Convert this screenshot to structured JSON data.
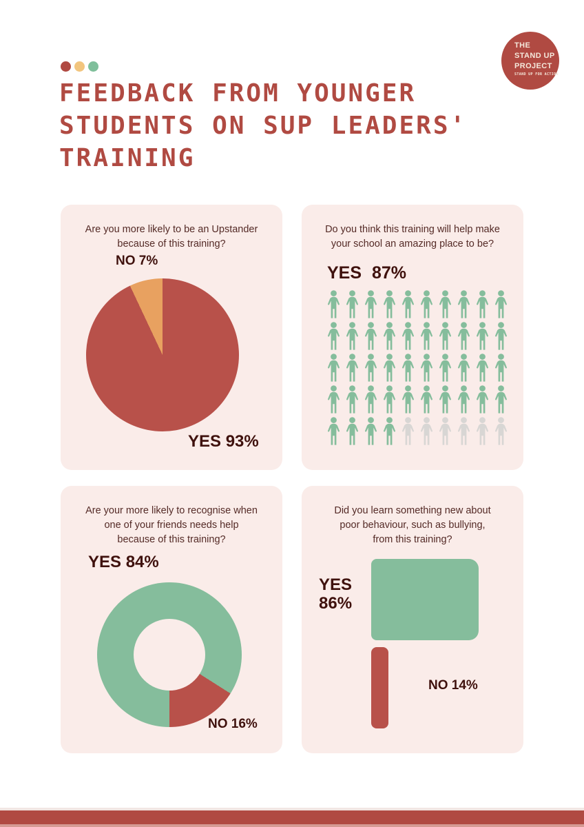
{
  "colors": {
    "page_bg": "#ffffff",
    "panel_bg": "#faece9",
    "brand_red": "#b04a42",
    "chart_red": "#b8514a",
    "orange": "#e8a160",
    "green": "#85bd9c",
    "gray": "#d8d6d4",
    "question_text": "#542a26",
    "stat_text": "#3f110d",
    "logo_text": "#f4e8db",
    "footer_accent": "#d59a93"
  },
  "header": {
    "dots": [
      "#b04a42",
      "#f2c57e",
      "#7fbf9b"
    ],
    "title_lines": [
      "FEEDBACK FROM YOUNGER",
      "STUDENTS ON SUP LEADERS'",
      "TRAINING"
    ],
    "logo": {
      "lines": [
        "THE",
        "STAND UP",
        "PROJECT"
      ],
      "tagline": "STAND UP FOR ACTION"
    }
  },
  "panels": [
    {
      "question_lines": [
        "Are you more likely to be an Upstander",
        "because of this training?"
      ],
      "labels": {
        "no": "NO 7%",
        "yes": "YES 93%"
      }
    },
    {
      "question_lines": [
        "Do you think this training will help make",
        "your school an amazing place to be?"
      ],
      "labels": {
        "yes": "YES 87%"
      }
    },
    {
      "question_lines": [
        "Are your more likely to recognise when",
        "one of your friends needs help",
        "because of this training?"
      ],
      "labels": {
        "yes": "YES 84%",
        "no": "NO 16%"
      }
    },
    {
      "question_lines": [
        "Did you learn something new about",
        "poor behaviour, such as bullying,",
        "from this training?"
      ],
      "labels": {
        "yes_line1": "YES",
        "yes_line2": "86%",
        "no": "NO 14%"
      }
    }
  ],
  "chart_data": [
    {
      "type": "pie",
      "title": "Are you more likely to be an Upstander because of this training?",
      "labels": [
        "YES",
        "NO"
      ],
      "values": [
        93,
        7
      ],
      "colors": [
        "#b8514a",
        "#e8a160"
      ],
      "start_angle": "top",
      "direction": "clockwise",
      "annotations": [
        "NO 7%",
        "YES 93%"
      ]
    },
    {
      "type": "pictogram",
      "title": "Do you think this training will help make your school an amazing place to be?",
      "label": "YES",
      "value_pct": 87,
      "rows": 5,
      "cols": 10,
      "icons_total": 50,
      "icons_filled": 44,
      "fill_color": "#85bd9c",
      "empty_color": "#d8d6d4"
    },
    {
      "type": "donut",
      "title": "Are your more likely to recognise when one of your friends needs help because of this training?",
      "labels": [
        "YES",
        "NO"
      ],
      "values": [
        84,
        16
      ],
      "colors": [
        "#85bd9c",
        "#b8514a"
      ],
      "no_slice_position": "bottom-right",
      "annotations": [
        "YES 84%",
        "NO 16%"
      ]
    },
    {
      "type": "bar",
      "title": "Did you learn something new about poor behaviour, such as bullying, from this training?",
      "orientation": "horizontal",
      "categories": [
        "YES",
        "NO"
      ],
      "values": [
        86,
        14
      ],
      "colors": [
        "#85bd9c",
        "#b8514a"
      ],
      "xlim": [
        0,
        100
      ],
      "annotations": [
        "YES 86%",
        "NO 14%"
      ]
    }
  ]
}
